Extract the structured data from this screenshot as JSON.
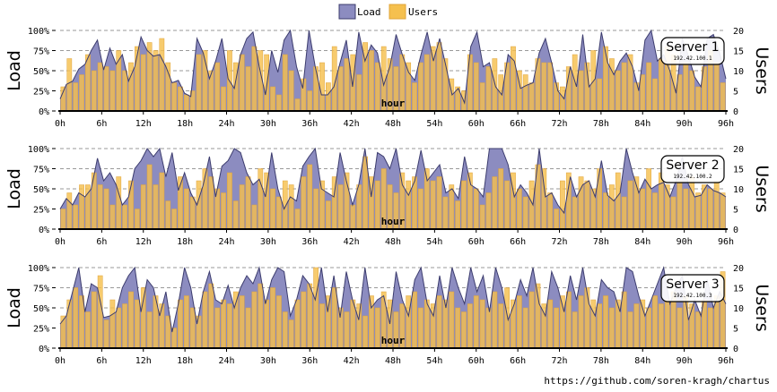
{
  "legend": {
    "load": "Load",
    "users": "Users"
  },
  "colors": {
    "load_fill": "#8c8cc0",
    "load_stroke": "#3c3c6e",
    "users_fill": "#f5c04e",
    "users_stroke": "#e0a43a"
  },
  "footer": {
    "link_text": "https://github.com/soren-kragh/chartus"
  },
  "chart_data": [
    {
      "type": "area+bar",
      "server_name": "Server 1",
      "server_ip": "192.42.100.1",
      "xlabel": "hour",
      "ylabel_left": "Load",
      "ylabel_right": "Users",
      "x_range": [
        0,
        96
      ],
      "x_ticks": [
        "0h",
        "6h",
        "12h",
        "18h",
        "24h",
        "30h",
        "36h",
        "42h",
        "48h",
        "54h",
        "60h",
        "66h",
        "72h",
        "78h",
        "84h",
        "90h",
        "96h"
      ],
      "y_left_ticks": [
        "0%",
        "25%",
        "50%",
        "75%",
        "100%"
      ],
      "y_left_range": [
        0,
        100
      ],
      "y_right_ticks": [
        "0",
        "5",
        "10",
        "15",
        "20"
      ],
      "y_right_range": [
        0,
        20
      ],
      "series": [
        {
          "name": "Load",
          "values": [
            15,
            33,
            37,
            52,
            58,
            75,
            88,
            51,
            78,
            58,
            70,
            37,
            55,
            92,
            75,
            68,
            70,
            55,
            35,
            38,
            22,
            18,
            90,
            72,
            40,
            62,
            90,
            40,
            28,
            70,
            90,
            98,
            55,
            20,
            75,
            48,
            88,
            100,
            55,
            28,
            100,
            55,
            20,
            20,
            30,
            60,
            88,
            30,
            98,
            62,
            82,
            72,
            32,
            55,
            95,
            70,
            48,
            38,
            70,
            98,
            62,
            90,
            56,
            20,
            28,
            10,
            80,
            98,
            55,
            60,
            30,
            20,
            70,
            62,
            28,
            32,
            35,
            72,
            90,
            60,
            25,
            15,
            55,
            30,
            95,
            30,
            40,
            98,
            60,
            45,
            62,
            72,
            55,
            25,
            88,
            100,
            62,
            70,
            50,
            22,
            90,
            68,
            42,
            30,
            90,
            95,
            72,
            40
          ]
        },
        {
          "name": "Users",
          "values": [
            6,
            13,
            7,
            9,
            14,
            10,
            12,
            11,
            10,
            15,
            10,
            12,
            16,
            14,
            17,
            15,
            18,
            12,
            7,
            6,
            4,
            5,
            14,
            15,
            10,
            12,
            6,
            15,
            12,
            14,
            11,
            16,
            15,
            14,
            6,
            4,
            14,
            10,
            3,
            8,
            5,
            11,
            12,
            7,
            16,
            11,
            13,
            14,
            9,
            17,
            15,
            12,
            16,
            13,
            11,
            14,
            12,
            7,
            12,
            14,
            16,
            17,
            13,
            8,
            6,
            5,
            14,
            12,
            7,
            11,
            13,
            9,
            12,
            16,
            10,
            9,
            7,
            13,
            12,
            12,
            7,
            6,
            11,
            14,
            10,
            12,
            15,
            8,
            16,
            13,
            10,
            12,
            14,
            7,
            9,
            12,
            8,
            13,
            16,
            14,
            9,
            12,
            10,
            6,
            11,
            15,
            12,
            7
          ]
        }
      ]
    },
    {
      "type": "area+bar",
      "server_name": "Server 2",
      "server_ip": "192.42.100.2",
      "xlabel": "hour",
      "ylabel_left": "Load",
      "ylabel_right": "Users",
      "x_range": [
        0,
        96
      ],
      "x_ticks": [
        "0h",
        "6h",
        "12h",
        "18h",
        "24h",
        "30h",
        "36h",
        "42h",
        "48h",
        "54h",
        "60h",
        "66h",
        "72h",
        "78h",
        "84h",
        "90h",
        "96h"
      ],
      "y_left_ticks": [
        "0%",
        "25%",
        "50%",
        "75%",
        "100%"
      ],
      "y_left_range": [
        0,
        100
      ],
      "y_right_ticks": [
        "0",
        "5",
        "10",
        "15",
        "20"
      ],
      "y_right_range": [
        0,
        20
      ],
      "series": [
        {
          "name": "Load",
          "values": [
            25,
            38,
            30,
            45,
            40,
            50,
            88,
            60,
            70,
            55,
            30,
            40,
            75,
            85,
            100,
            90,
            100,
            65,
            95,
            48,
            70,
            45,
            30,
            55,
            90,
            40,
            78,
            85,
            100,
            95,
            70,
            55,
            62,
            40,
            95,
            50,
            25,
            40,
            35,
            78,
            90,
            100,
            50,
            45,
            40,
            95,
            60,
            30,
            55,
            100,
            40,
            95,
            90,
            75,
            100,
            55,
            42,
            60,
            98,
            60,
            70,
            80,
            45,
            50,
            38,
            90,
            55,
            50,
            40,
            100,
            100,
            100,
            80,
            40,
            55,
            45,
            30,
            100,
            40,
            45,
            30,
            20,
            65,
            40,
            55,
            60,
            40,
            85,
            42,
            35,
            45,
            100,
            70,
            45,
            62,
            50,
            55,
            58,
            40,
            60,
            90,
            55,
            40,
            42,
            55,
            48,
            45,
            40
          ]
        },
        {
          "name": "Users",
          "values": [
            5,
            9,
            6,
            11,
            11,
            14,
            11,
            10,
            6,
            13,
            6,
            12,
            5,
            11,
            16,
            11,
            14,
            7,
            5,
            13,
            10,
            8,
            12,
            15,
            13,
            10,
            9,
            14,
            7,
            11,
            13,
            6,
            15,
            14,
            10,
            8,
            12,
            11,
            5,
            13,
            16,
            10,
            12,
            7,
            13,
            11,
            14,
            6,
            11,
            18,
            13,
            12,
            15,
            11,
            9,
            14,
            12,
            13,
            10,
            15,
            12,
            13,
            8,
            11,
            7,
            12,
            14,
            10,
            6,
            9,
            13,
            15,
            12,
            14,
            10,
            8,
            12,
            16,
            15,
            9,
            5,
            12,
            14,
            8,
            13,
            12,
            10,
            15,
            9,
            11,
            14,
            8,
            12,
            13,
            10,
            15,
            9,
            14,
            11,
            8,
            12,
            10,
            13,
            9,
            11,
            10,
            12,
            9
          ]
        }
      ]
    },
    {
      "type": "area+bar",
      "server_name": "Server 3",
      "server_ip": "192.42.100.3",
      "xlabel": "hour",
      "ylabel_left": "Load",
      "ylabel_right": "Users",
      "x_range": [
        0,
        96
      ],
      "x_ticks": [
        "0h",
        "6h",
        "12h",
        "18h",
        "24h",
        "30h",
        "36h",
        "42h",
        "48h",
        "54h",
        "60h",
        "66h",
        "72h",
        "78h",
        "84h",
        "90h",
        "96h"
      ],
      "y_left_ticks": [
        "0%",
        "25%",
        "50%",
        "75%",
        "100%"
      ],
      "y_left_range": [
        0,
        100
      ],
      "y_right_ticks": [
        "0",
        "5",
        "10",
        "15",
        "20"
      ],
      "y_right_range": [
        0,
        20
      ],
      "series": [
        {
          "name": "Load",
          "values": [
            30,
            40,
            70,
            100,
            45,
            80,
            75,
            38,
            40,
            45,
            75,
            90,
            100,
            45,
            85,
            75,
            40,
            70,
            20,
            55,
            100,
            75,
            30,
            70,
            95,
            60,
            55,
            78,
            50,
            75,
            90,
            80,
            100,
            55,
            85,
            100,
            95,
            40,
            60,
            90,
            80,
            60,
            100,
            45,
            90,
            38,
            95,
            60,
            35,
            100,
            50,
            60,
            65,
            30,
            95,
            60,
            40,
            85,
            100,
            55,
            40,
            90,
            50,
            100,
            75,
            55,
            100,
            70,
            90,
            45,
            100,
            75,
            35,
            55,
            85,
            65,
            100,
            55,
            40,
            95,
            75,
            45,
            90,
            60,
            100,
            55,
            40,
            85,
            75,
            70,
            45,
            100,
            95,
            65,
            40,
            60,
            80,
            100,
            55,
            75,
            90,
            35,
            60,
            40,
            85,
            50,
            70,
            55
          ]
        },
        {
          "name": "Users",
          "values": [
            8,
            12,
            15,
            13,
            9,
            14,
            18,
            7,
            12,
            10,
            11,
            14,
            12,
            15,
            9,
            13,
            11,
            8,
            5,
            12,
            13,
            10,
            8,
            14,
            16,
            10,
            12,
            11,
            14,
            13,
            10,
            14,
            16,
            12,
            15,
            13,
            9,
            7,
            12,
            14,
            16,
            20,
            11,
            13,
            15,
            10,
            9,
            12,
            11,
            8,
            13,
            10,
            14,
            12,
            9,
            11,
            13,
            14,
            10,
            12,
            11,
            13,
            12,
            14,
            10,
            9,
            11,
            13,
            12,
            10,
            14,
            11,
            15,
            12,
            13,
            10,
            14,
            16,
            11,
            12,
            10,
            13,
            14,
            9,
            13,
            15,
            12,
            11,
            13,
            10,
            12,
            14,
            9,
            11,
            12,
            10,
            13,
            11,
            12,
            14,
            10,
            13,
            11,
            9,
            12,
            10,
            13,
            19
          ]
        }
      ]
    }
  ]
}
